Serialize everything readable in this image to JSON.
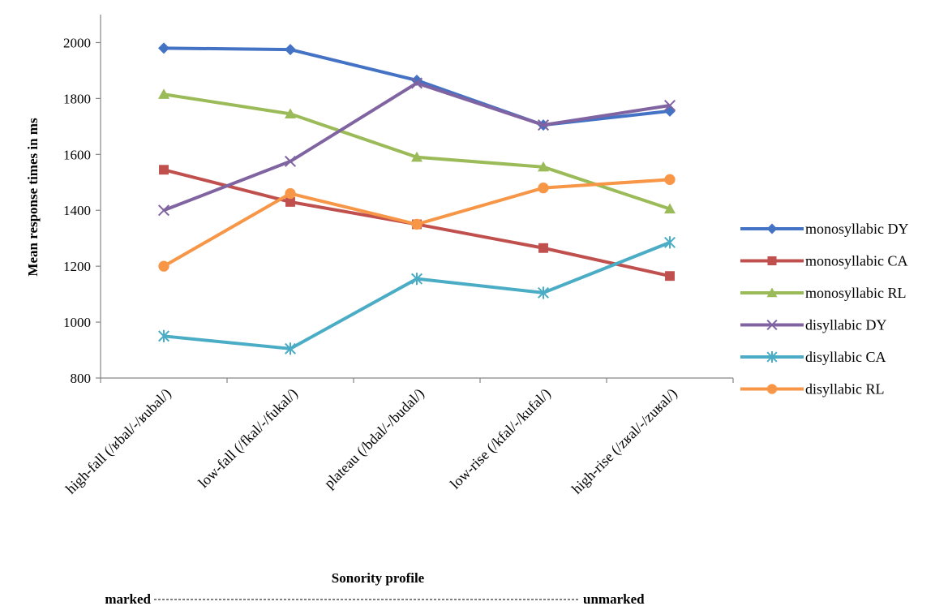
{
  "chart_data": {
    "type": "line",
    "title": "",
    "xlabel": "Sonority profile",
    "ylabel": "Mean response times in ms",
    "ylim": [
      800,
      2000
    ],
    "yticks": [
      800,
      1000,
      1200,
      1400,
      1600,
      1800,
      2000
    ],
    "grid": false,
    "legend_position": "right",
    "categories": [
      "high-fall (/ʁbal/-/ʁubal/)",
      "low-fall (/fkal/-/fukal/)",
      "plateau (/bdal/-/budal/)",
      "low-rise (/kfal/-/kufal/)",
      "high-rise (/zʁal/-/zuʁal/)"
    ],
    "series": [
      {
        "name": "monosyllabic DY",
        "color": "#4472C4",
        "marker": "diamond",
        "values": [
          1980,
          1975,
          1865,
          1705,
          1755
        ]
      },
      {
        "name": "monosyllabic CA",
        "color": "#C0504D",
        "marker": "square",
        "values": [
          1545,
          1430,
          1350,
          1265,
          1165
        ]
      },
      {
        "name": "monosyllabic RL",
        "color": "#9BBB59",
        "marker": "triangle",
        "values": [
          1815,
          1745,
          1590,
          1555,
          1405
        ]
      },
      {
        "name": "disyllabic DY",
        "color": "#8064A2",
        "marker": "x",
        "values": [
          1400,
          1575,
          1855,
          1705,
          1775
        ]
      },
      {
        "name": "disyllabic CA",
        "color": "#4BACC6",
        "marker": "star",
        "values": [
          950,
          905,
          1155,
          1105,
          1285
        ]
      },
      {
        "name": "disyllabic RL",
        "color": "#F79646",
        "marker": "circle",
        "values": [
          1200,
          1460,
          1350,
          1480,
          1510
        ]
      }
    ],
    "scale_labels": {
      "left": "marked",
      "right": "unmarked"
    }
  }
}
